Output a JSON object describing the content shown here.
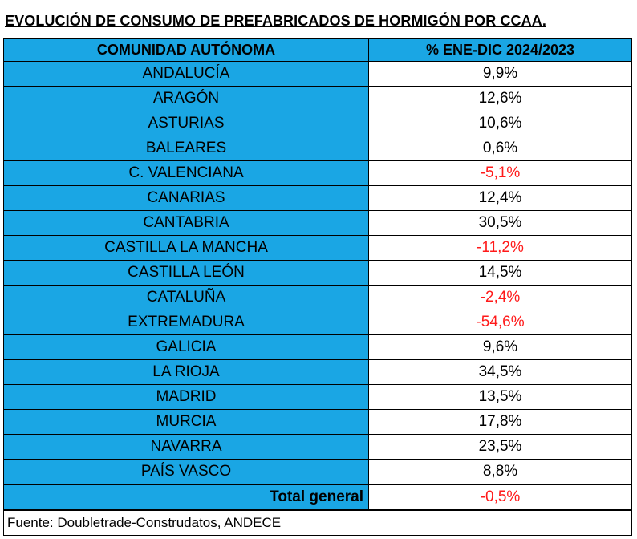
{
  "title": "EVOLUCIÓN DE CONSUMO DE PREFABRICADOS DE HORMIGÓN POR CCAA.",
  "header": {
    "region_label": "COMUNIDAD AUTÓNOMA",
    "value_label": "% ENE-DIC 2024/2023"
  },
  "rows": [
    {
      "region": "ANDALUCÍA",
      "value": "9,9%",
      "negative": false
    },
    {
      "region": "ARAGÓN",
      "value": "12,6%",
      "negative": false
    },
    {
      "region": "ASTURIAS",
      "value": "10,6%",
      "negative": false
    },
    {
      "region": "BALEARES",
      "value": "0,6%",
      "negative": false
    },
    {
      "region": "C. VALENCIANA",
      "value": "-5,1%",
      "negative": true
    },
    {
      "region": "CANARIAS",
      "value": "12,4%",
      "negative": false
    },
    {
      "region": "CANTABRIA",
      "value": "30,5%",
      "negative": false
    },
    {
      "region": "CASTILLA LA MANCHA",
      "value": "-11,2%",
      "negative": true
    },
    {
      "region": "CASTILLA LEÓN",
      "value": "14,5%",
      "negative": false
    },
    {
      "region": "CATALUÑA",
      "value": "-2,4%",
      "negative": true
    },
    {
      "region": "EXTREMADURA",
      "value": "-54,6%",
      "negative": true
    },
    {
      "region": "GALICIA",
      "value": "9,6%",
      "negative": false
    },
    {
      "region": "LA RIOJA",
      "value": "34,5%",
      "negative": false
    },
    {
      "region": "MADRID",
      "value": "13,5%",
      "negative": false
    },
    {
      "region": "MURCIA",
      "value": "17,8%",
      "negative": false
    },
    {
      "region": "NAVARRA",
      "value": "23,5%",
      "negative": false
    },
    {
      "region": "PAÍS VASCO",
      "value": "8,8%",
      "negative": false
    }
  ],
  "total": {
    "label": "Total general",
    "value": "-0,5%",
    "negative": true
  },
  "source": "Fuente: Doubletrade-Construdatos, ANDECE",
  "colors": {
    "header_fill": "#1aa6e4",
    "region_fill": "#1aa6e4",
    "negative_text": "#ff1a1a",
    "border": "#000000"
  }
}
